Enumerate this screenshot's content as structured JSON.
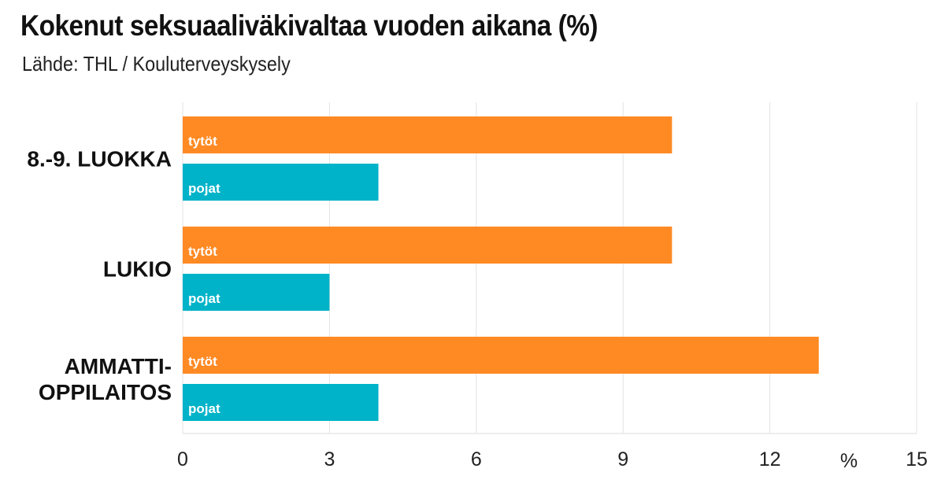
{
  "chart_data": {
    "type": "bar",
    "orientation": "horizontal",
    "title": "Kokenut seksuaaliväkivaltaa vuoden aikana (%)",
    "subtitle": "Lähde: THL / Kouluterveyskysely",
    "categories": [
      [
        "8.-9. LUOKKA"
      ],
      [
        "LUKIO"
      ],
      [
        "AMMATTI-",
        "OPPILAITOS"
      ]
    ],
    "series": [
      {
        "name": "tytöt",
        "color": "#FF8A24",
        "values": [
          10,
          10,
          13
        ]
      },
      {
        "name": "pojat",
        "color": "#00B3C8",
        "values": [
          4,
          3,
          4
        ]
      }
    ],
    "xlim": [
      0,
      15
    ],
    "xticks": [
      0,
      3,
      6,
      9,
      12,
      15
    ],
    "xlabel": "%",
    "grid": true
  }
}
